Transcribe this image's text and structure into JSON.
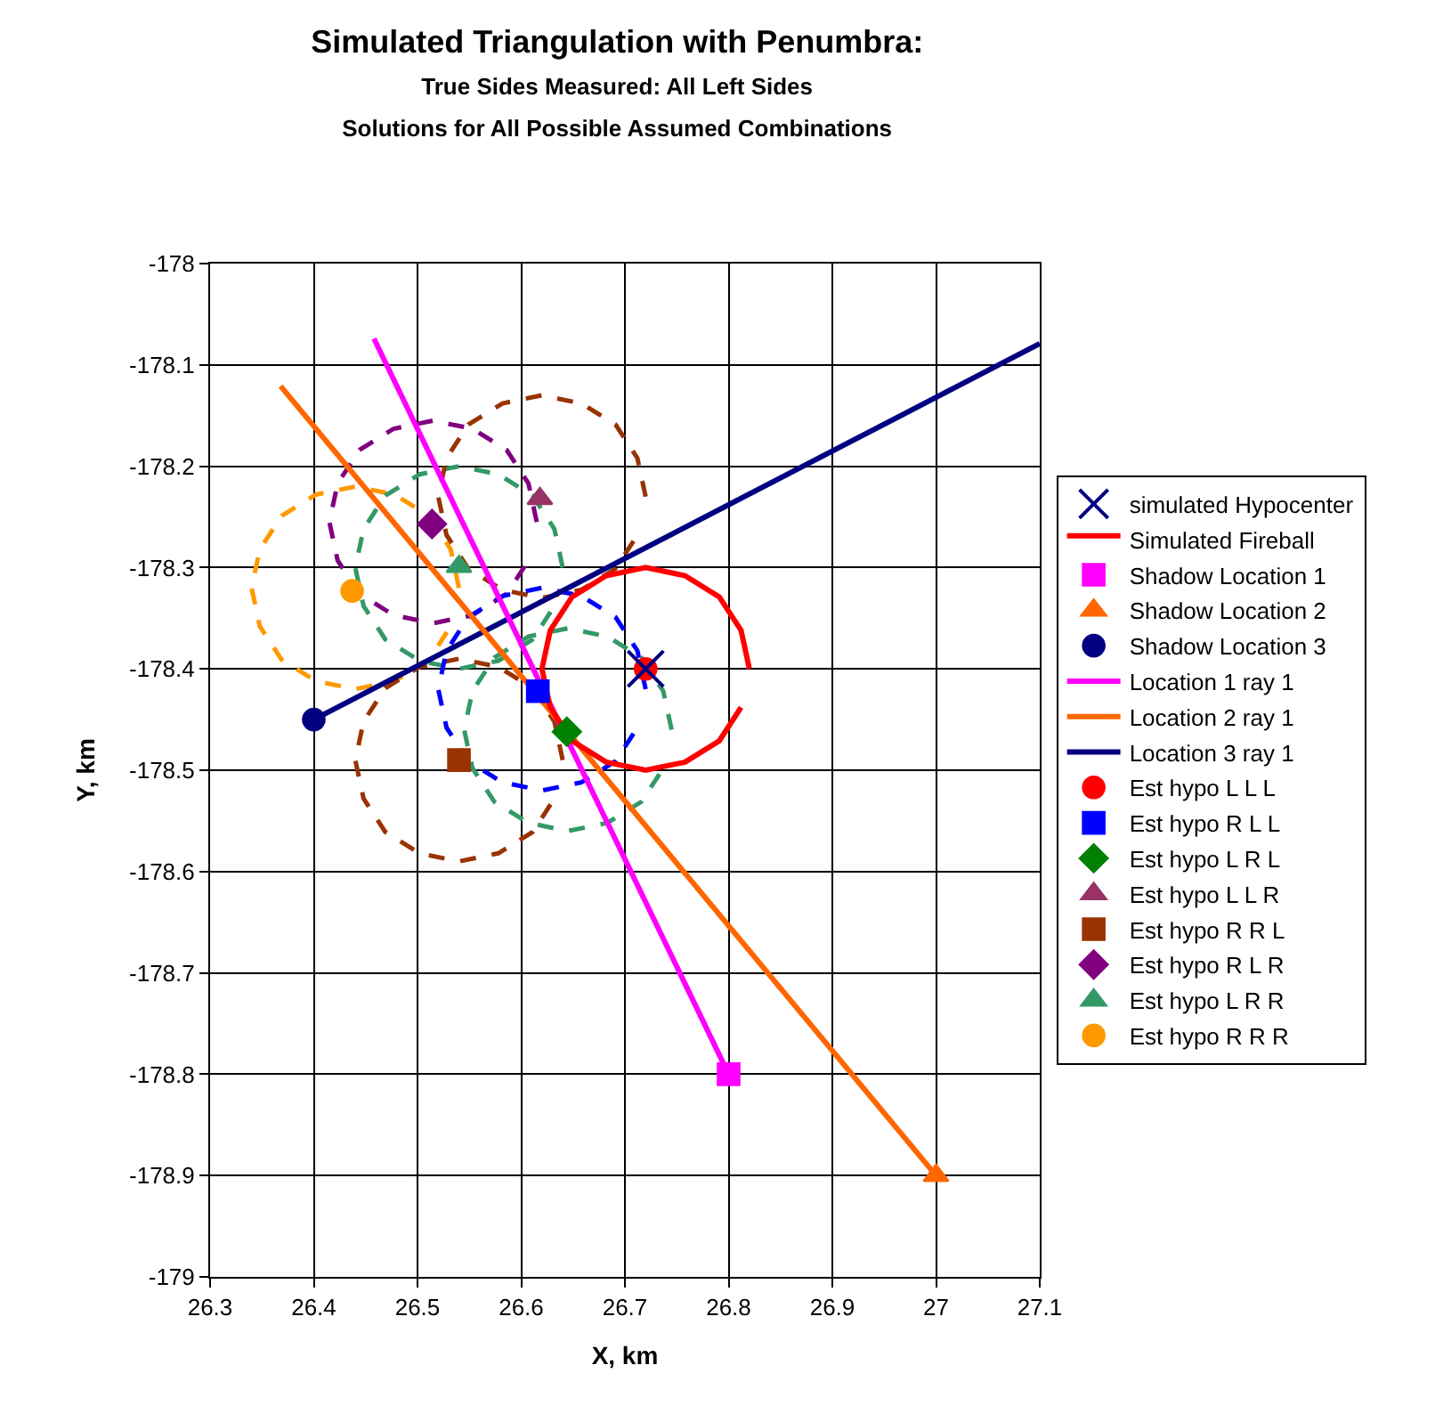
{
  "chart_data": {
    "type": "scatter",
    "title": "Simulated Triangulation with Penumbra:",
    "subtitle": "True Sides Measured: All Left Sides\nSolutions for All Possible Assumed Combinations",
    "xlabel": "X, km",
    "ylabel": "Y, km",
    "xlim": [
      26.3,
      27.1
    ],
    "xticks": [
      26.3,
      26.4,
      26.5,
      26.6,
      26.7,
      26.8,
      26.9,
      27,
      27.1
    ],
    "ylim": [
      -179,
      -178
    ],
    "yticks": [
      -179,
      -178.9,
      -178.8,
      -178.7,
      -178.6,
      -178.5,
      -178.4,
      -178.3,
      -178.2,
      -178.1,
      -178
    ],
    "grid": true,
    "legend": "right",
    "series": [
      {
        "name": "simulated Hypocenter",
        "marker": "cross",
        "color": "#000080",
        "x": [
          26.72
        ],
        "values": [
          -178.4
        ]
      },
      {
        "name": "Simulated Fireball",
        "type": "line",
        "marker": "none",
        "line_style": "solid",
        "color": "#ff0000",
        "x": [
          26.82,
          26.812,
          26.791,
          26.758,
          26.72,
          26.682,
          26.649,
          26.628,
          26.62,
          26.628,
          26.649,
          26.682,
          26.72,
          26.758,
          26.791,
          26.812,
          26.82
        ],
        "values": [
          -178.4,
          -178.362,
          -178.329,
          -178.308,
          -178.3,
          -178.308,
          -178.329,
          -178.362,
          -178.4,
          -178.438,
          -178.471,
          -178.492,
          -178.5,
          -178.492,
          -178.471,
          -178.438,
          -178.4
        ]
      },
      {
        "name": "Shadow Location 1",
        "marker": "square",
        "color": "#ff00ff",
        "x": [
          26.8
        ],
        "values": [
          -178.8
        ]
      },
      {
        "name": "Shadow Location 2",
        "marker": "triangle",
        "color": "#ff6600",
        "x": [
          27.0
        ],
        "values": [
          -178.9
        ]
      },
      {
        "name": "Shadow Location 3",
        "marker": "circle",
        "color": "#000080",
        "x": [
          26.4
        ],
        "values": [
          -178.45
        ]
      },
      {
        "name": "Location 1 ray 1",
        "type": "line",
        "marker": "none",
        "line_style": "solid",
        "color": "#ff00ff",
        "x": [
          26.8,
          26.458
        ],
        "values": [
          -178.8,
          -178.074
        ]
      },
      {
        "name": "Location 2 ray 1",
        "type": "line",
        "marker": "none",
        "line_style": "solid",
        "color": "#ff6600",
        "x": [
          27.0,
          26.368
        ],
        "values": [
          -178.9,
          -178.121
        ]
      },
      {
        "name": "Location 3 ray 1",
        "type": "line",
        "marker": "none",
        "line_style": "solid",
        "color": "#000080",
        "x": [
          26.4,
          27.1
        ],
        "values": [
          -178.45,
          -178.079
        ]
      },
      {
        "name": "Est hypo L L L",
        "marker": "circle",
        "color": "#ff0000",
        "x": [
          26.72
        ],
        "values": [
          -178.4
        ]
      },
      {
        "name": "Est hypo R L L",
        "marker": "square",
        "color": "#0000ff",
        "x": [
          26.616
        ],
        "values": [
          -178.422
        ]
      },
      {
        "name": "Est hypo L R L",
        "marker": "diamond",
        "color": "#008000",
        "x": [
          26.644
        ],
        "values": [
          -178.462
        ]
      },
      {
        "name": "Est hypo L L R",
        "marker": "triangle",
        "color": "#993366",
        "x": [
          26.618
        ],
        "values": [
          -178.232
        ]
      },
      {
        "name": "Est hypo R R L",
        "marker": "square",
        "color": "#993300",
        "x": [
          26.54
        ],
        "values": [
          -178.49
        ]
      },
      {
        "name": "Est hypo R L R",
        "marker": "diamond",
        "color": "#800080",
        "x": [
          26.514
        ],
        "values": [
          -178.257
        ]
      },
      {
        "name": "Est hypo L R R",
        "marker": "triangle",
        "color": "#339966",
        "x": [
          26.54
        ],
        "values": [
          -178.299
        ]
      },
      {
        "name": "Est hypo R R R",
        "marker": "circle",
        "color": "#ff9900",
        "x": [
          26.437
        ],
        "values": [
          -178.323
        ]
      },
      {
        "type": "line",
        "marker": "none",
        "line_style": "dashed",
        "color": "#0000ff",
        "x": [
          26.72,
          26.712,
          26.691,
          26.658,
          26.62,
          26.582,
          26.549,
          26.528,
          26.52,
          26.528,
          26.549,
          26.582,
          26.62,
          26.658,
          26.691,
          26.712,
          26.72
        ],
        "values": [
          -178.42,
          -178.382,
          -178.349,
          -178.328,
          -178.32,
          -178.328,
          -178.349,
          -178.382,
          -178.42,
          -178.458,
          -178.491,
          -178.512,
          -178.52,
          -178.512,
          -178.491,
          -178.458,
          -178.42
        ]
      },
      {
        "type": "line",
        "marker": "none",
        "line_style": "dashed",
        "color": "#339966",
        "x": [
          26.745,
          26.737,
          26.716,
          26.683,
          26.645,
          26.607,
          26.574,
          26.553,
          26.545,
          26.553,
          26.574,
          26.607,
          26.645,
          26.683,
          26.716,
          26.737,
          26.745
        ],
        "values": [
          -178.46,
          -178.422,
          -178.389,
          -178.368,
          -178.36,
          -178.368,
          -178.389,
          -178.422,
          -178.46,
          -178.498,
          -178.531,
          -178.552,
          -178.56,
          -178.552,
          -178.531,
          -178.498,
          -178.46
        ]
      },
      {
        "type": "line",
        "marker": "none",
        "line_style": "dashed",
        "color": "#993300",
        "x": [
          26.72,
          26.712,
          26.691,
          26.658,
          26.62,
          26.582,
          26.549,
          26.528,
          26.52,
          26.528,
          26.549,
          26.582,
          26.62,
          26.658,
          26.691,
          26.712,
          26.72
        ],
        "values": [
          -178.23,
          -178.192,
          -178.159,
          -178.138,
          -178.13,
          -178.138,
          -178.159,
          -178.192,
          -178.23,
          -178.268,
          -178.301,
          -178.322,
          -178.33,
          -178.322,
          -178.301,
          -178.268,
          -178.23
        ]
      },
      {
        "type": "line",
        "marker": "none",
        "line_style": "dashed",
        "color": "#993300",
        "x": [
          26.64,
          26.632,
          26.611,
          26.578,
          26.54,
          26.502,
          26.469,
          26.448,
          26.44,
          26.448,
          26.469,
          26.502,
          26.54,
          26.578,
          26.611,
          26.632,
          26.64
        ],
        "values": [
          -178.49,
          -178.452,
          -178.419,
          -178.398,
          -178.39,
          -178.398,
          -178.419,
          -178.452,
          -178.49,
          -178.528,
          -178.561,
          -178.582,
          -178.59,
          -178.582,
          -178.561,
          -178.528,
          -178.49
        ]
      },
      {
        "type": "line",
        "marker": "none",
        "line_style": "dashed",
        "color": "#800080",
        "x": [
          26.615,
          26.607,
          26.586,
          26.553,
          26.515,
          26.477,
          26.444,
          26.423,
          26.415,
          26.423,
          26.444,
          26.477,
          26.515,
          26.553,
          26.586,
          26.607,
          26.615
        ],
        "values": [
          -178.255,
          -178.217,
          -178.184,
          -178.163,
          -178.155,
          -178.163,
          -178.184,
          -178.217,
          -178.255,
          -178.293,
          -178.326,
          -178.347,
          -178.355,
          -178.347,
          -178.326,
          -178.293,
          -178.255
        ]
      },
      {
        "type": "line",
        "marker": "none",
        "line_style": "dashed",
        "color": "#339966",
        "x": [
          26.64,
          26.632,
          26.611,
          26.578,
          26.54,
          26.502,
          26.469,
          26.448,
          26.44,
          26.448,
          26.469,
          26.502,
          26.54,
          26.578,
          26.611,
          26.632,
          26.64
        ],
        "values": [
          -178.3,
          -178.262,
          -178.229,
          -178.208,
          -178.2,
          -178.208,
          -178.229,
          -178.262,
          -178.3,
          -178.338,
          -178.371,
          -178.392,
          -178.4,
          -178.392,
          -178.371,
          -178.338,
          -178.3
        ]
      },
      {
        "type": "line",
        "marker": "none",
        "line_style": "dashed",
        "color": "#ff9900",
        "x": [
          26.54,
          26.532,
          26.511,
          26.478,
          26.44,
          26.402,
          26.369,
          26.348,
          26.34,
          26.348,
          26.369,
          26.402,
          26.44,
          26.478,
          26.511,
          26.532,
          26.54
        ],
        "values": [
          -178.32,
          -178.282,
          -178.249,
          -178.228,
          -178.22,
          -178.228,
          -178.249,
          -178.282,
          -178.32,
          -178.358,
          -178.391,
          -178.412,
          -178.42,
          -178.412,
          -178.391,
          -178.358,
          -178.32
        ]
      }
    ]
  }
}
